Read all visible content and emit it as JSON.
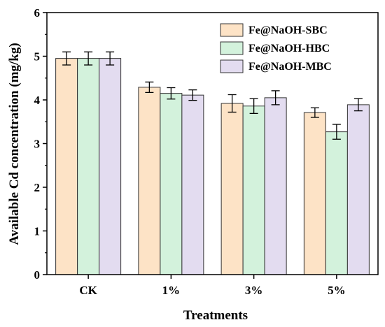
{
  "chart_data": {
    "type": "bar",
    "categories": [
      "CK",
      "1%",
      "3%",
      "5%"
    ],
    "series": [
      {
        "name": "Fe@NaOH-SBC",
        "values": [
          4.95,
          4.29,
          3.92,
          3.71
        ],
        "errors": [
          0.15,
          0.12,
          0.2,
          0.11
        ],
        "color": "#fde3c6"
      },
      {
        "name": "Fe@NaOH-HBC",
        "values": [
          4.95,
          4.15,
          3.86,
          3.27
        ],
        "errors": [
          0.15,
          0.13,
          0.17,
          0.17
        ],
        "color": "#d3f2dc"
      },
      {
        "name": "Fe@NaOH-MBC",
        "values": [
          4.95,
          4.11,
          4.05,
          3.89
        ],
        "errors": [
          0.15,
          0.12,
          0.16,
          0.14
        ],
        "color": "#e3dcf0"
      }
    ],
    "ylim": [
      0,
      6
    ],
    "yticks": [
      "0",
      "1",
      "2",
      "3",
      "4",
      "5",
      "6"
    ],
    "xlabel": "Treatments",
    "ylabel": "Available Cd concentration (mg/kg)",
    "legend_position": "top-right",
    "grid": false
  }
}
